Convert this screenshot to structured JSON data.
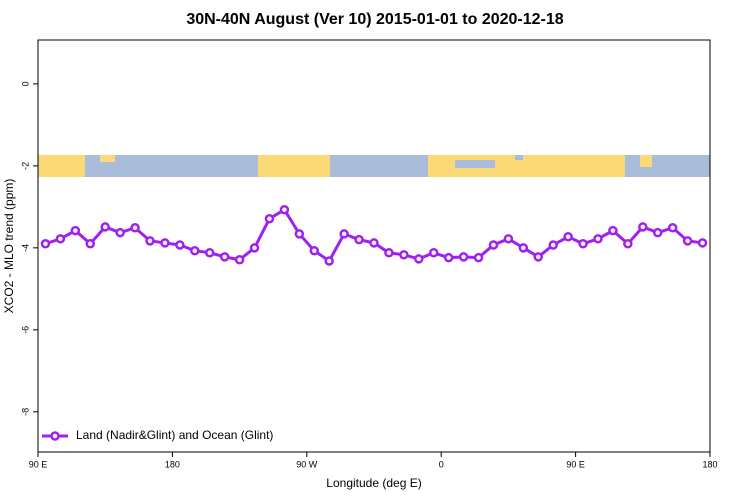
{
  "chart_data": {
    "type": "line",
    "title": "30N-40N August (Ver 10)   2015-01-01 to 2020-12-18",
    "x_label": "Longitude (deg E)",
    "y_label": "XCO2 - MLO trend (ppm)",
    "x": [
      95,
      105,
      115,
      125,
      135,
      145,
      155,
      165,
      175,
      185,
      195,
      205,
      215,
      225,
      235,
      245,
      255,
      265,
      275,
      285,
      295,
      305,
      315,
      325,
      335,
      345,
      355,
      365,
      375,
      385,
      395,
      405,
      415,
      425,
      435,
      445,
      455,
      465,
      475,
      485,
      495,
      505,
      515,
      525,
      535
    ],
    "series": [
      {
        "name": "Land (Nadir&Glint) and Ocean (Glint)",
        "color": "#a020f0",
        "values": [
          -3.9,
          -3.78,
          -3.58,
          -3.9,
          -3.49,
          -3.63,
          -3.51,
          -3.83,
          -3.88,
          -3.93,
          -4.07,
          -4.12,
          -4.22,
          -4.29,
          -4.0,
          -3.29,
          -3.07,
          -3.66,
          -4.07,
          -4.32,
          -3.66,
          -3.8,
          -3.88,
          -4.12,
          -4.17,
          -4.27,
          -4.12,
          -4.24,
          -4.22,
          -4.24,
          -3.93,
          -3.78,
          -4.0,
          -4.22,
          -3.93,
          -3.73,
          -3.9,
          -3.78,
          -3.58,
          -3.9,
          -3.49,
          -3.63,
          -3.51,
          -3.83,
          -3.88
        ]
      }
    ],
    "xlim": [
      90,
      540
    ],
    "xticks": [
      {
        "value": 90,
        "label": "90 E"
      },
      180,
      {
        "value": 270,
        "label": "90 W"
      },
      {
        "value": 360,
        "label": "0"
      },
      {
        "value": 450,
        "label": "90 E"
      },
      {
        "value": 540,
        "label": "180"
      }
    ],
    "ylim": [
      -8.98,
      1.07
    ],
    "yticks": [
      0,
      -2,
      -4,
      -6,
      -8
    ],
    "legend": "bottomleft"
  }
}
